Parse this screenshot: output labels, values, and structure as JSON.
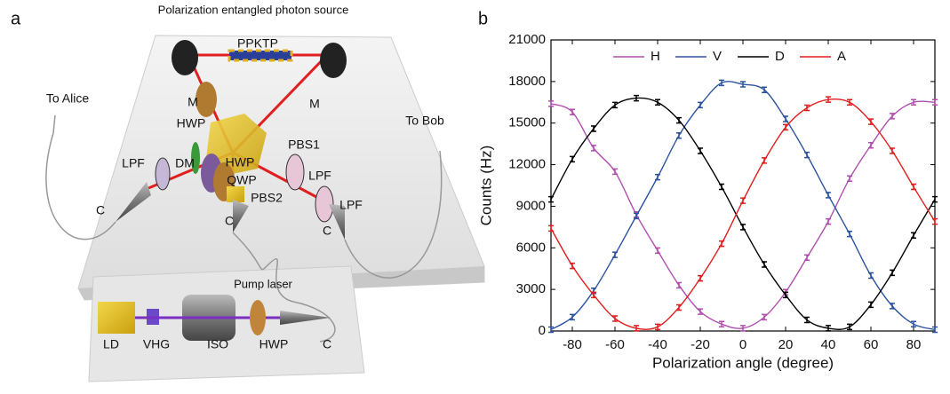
{
  "panels": {
    "a": "a",
    "b": "b"
  },
  "diagram": {
    "title": "Polarization entangled photon source",
    "labels": [
      "PPKTP",
      "M",
      "M",
      "HWP",
      "PBS1",
      "To Alice",
      "To Bob",
      "DM",
      "HWP",
      "QWP",
      "LPF",
      "LPF",
      "LPF",
      "PBS2",
      "C",
      "C",
      "C",
      "Pump laser",
      "LD",
      "VHG",
      "ISO",
      "HWP",
      "C"
    ]
  },
  "chart_data": {
    "type": "line",
    "x_label": "Polarization angle (degree)",
    "y_label": "Counts (Hz)",
    "x": [
      -90,
      -80,
      -70,
      -60,
      -50,
      -40,
      -30,
      -20,
      -10,
      0,
      10,
      20,
      30,
      40,
      50,
      60,
      70,
      80,
      90
    ],
    "xlim": [
      -90,
      90
    ],
    "xticks": [
      -80,
      -60,
      -40,
      -20,
      0,
      20,
      40,
      60,
      80
    ],
    "ylim": [
      0,
      21000
    ],
    "yticks": [
      0,
      3000,
      6000,
      9000,
      12000,
      15000,
      18000,
      21000
    ],
    "legend": "top",
    "series": [
      {
        "name": "H",
        "color": "#b04fb0",
        "values": [
          16400,
          15800,
          13200,
          11500,
          8400,
          5800,
          3300,
          1400,
          500,
          200,
          1000,
          2800,
          5300,
          7900,
          11000,
          13400,
          15500,
          16500,
          16500
        ]
      },
      {
        "name": "V",
        "color": "#2b53a0",
        "values": [
          100,
          1000,
          2900,
          5500,
          8300,
          11100,
          14100,
          16300,
          17900,
          17800,
          17400,
          15300,
          12700,
          9800,
          7000,
          4000,
          1800,
          500,
          100
        ]
      },
      {
        "name": "D",
        "color": "#000000",
        "values": [
          9500,
          12400,
          14600,
          16300,
          16800,
          16500,
          15200,
          13000,
          10400,
          7500,
          4800,
          2600,
          800,
          200,
          300,
          1900,
          4200,
          6900,
          9500
        ]
      },
      {
        "name": "A",
        "color": "#e21d1d",
        "values": [
          7400,
          4700,
          2600,
          900,
          200,
          300,
          1700,
          3800,
          6300,
          9400,
          12300,
          14700,
          16100,
          16700,
          16500,
          15100,
          13000,
          10400,
          7900
        ]
      }
    ]
  }
}
